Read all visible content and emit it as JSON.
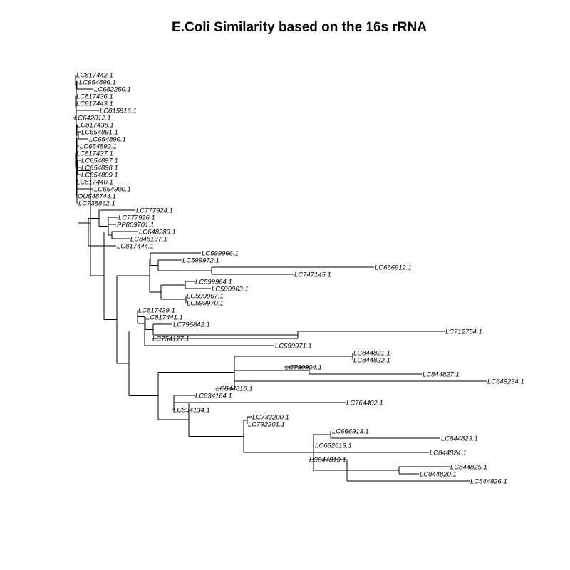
{
  "title": "E.Coli Similarity based on the 16s rRNA",
  "colors": {
    "line": "#000000",
    "label": "#000000",
    "background": "#ffffff"
  },
  "tips": [
    "LC817442.1",
    "LC654896.1",
    "LC682250.1",
    "LC817436.1",
    "LC817443.1",
    "LC815916.1",
    "LC642012.1",
    "LC817438.1",
    "LC654891.1",
    "LC654890.1",
    "LC654892.1",
    "LC817437.1",
    "LC654897.1",
    "LC654898.1",
    "LC654899.1",
    "LC817440.1",
    "LC654900.1",
    "OU548744.1",
    "LC738862.1",
    "LC777924.1",
    "LC777926.1",
    "PP809701.1",
    "LC648289.1",
    "LC848137.1",
    "LC817444.1",
    "LC599966.1",
    "LC599972.1",
    "LC666912.1",
    "LC747145.1",
    "LC599964.1",
    "LC599963.1",
    "LC599967.1",
    "LC599970.1",
    "LC817439.1",
    "LC817441.1",
    "LC796842.1",
    "LC712754.1",
    "LC754127.1",
    "LC599971.1",
    "LC844821.1",
    "LC844822.1",
    "LC730904.1",
    "LC844827.1",
    "LC649234.1",
    "LC844818.1",
    "LC834164.1",
    "LC764402.1",
    "LC834134.1",
    "LC732200.1",
    "LC732201.1",
    "LC666913.1",
    "LC844823.1",
    "LC682613.1",
    "LC844824.1",
    "LC844819.1",
    "LC844825.1",
    "LC844820.1",
    "LC844826.1"
  ]
}
